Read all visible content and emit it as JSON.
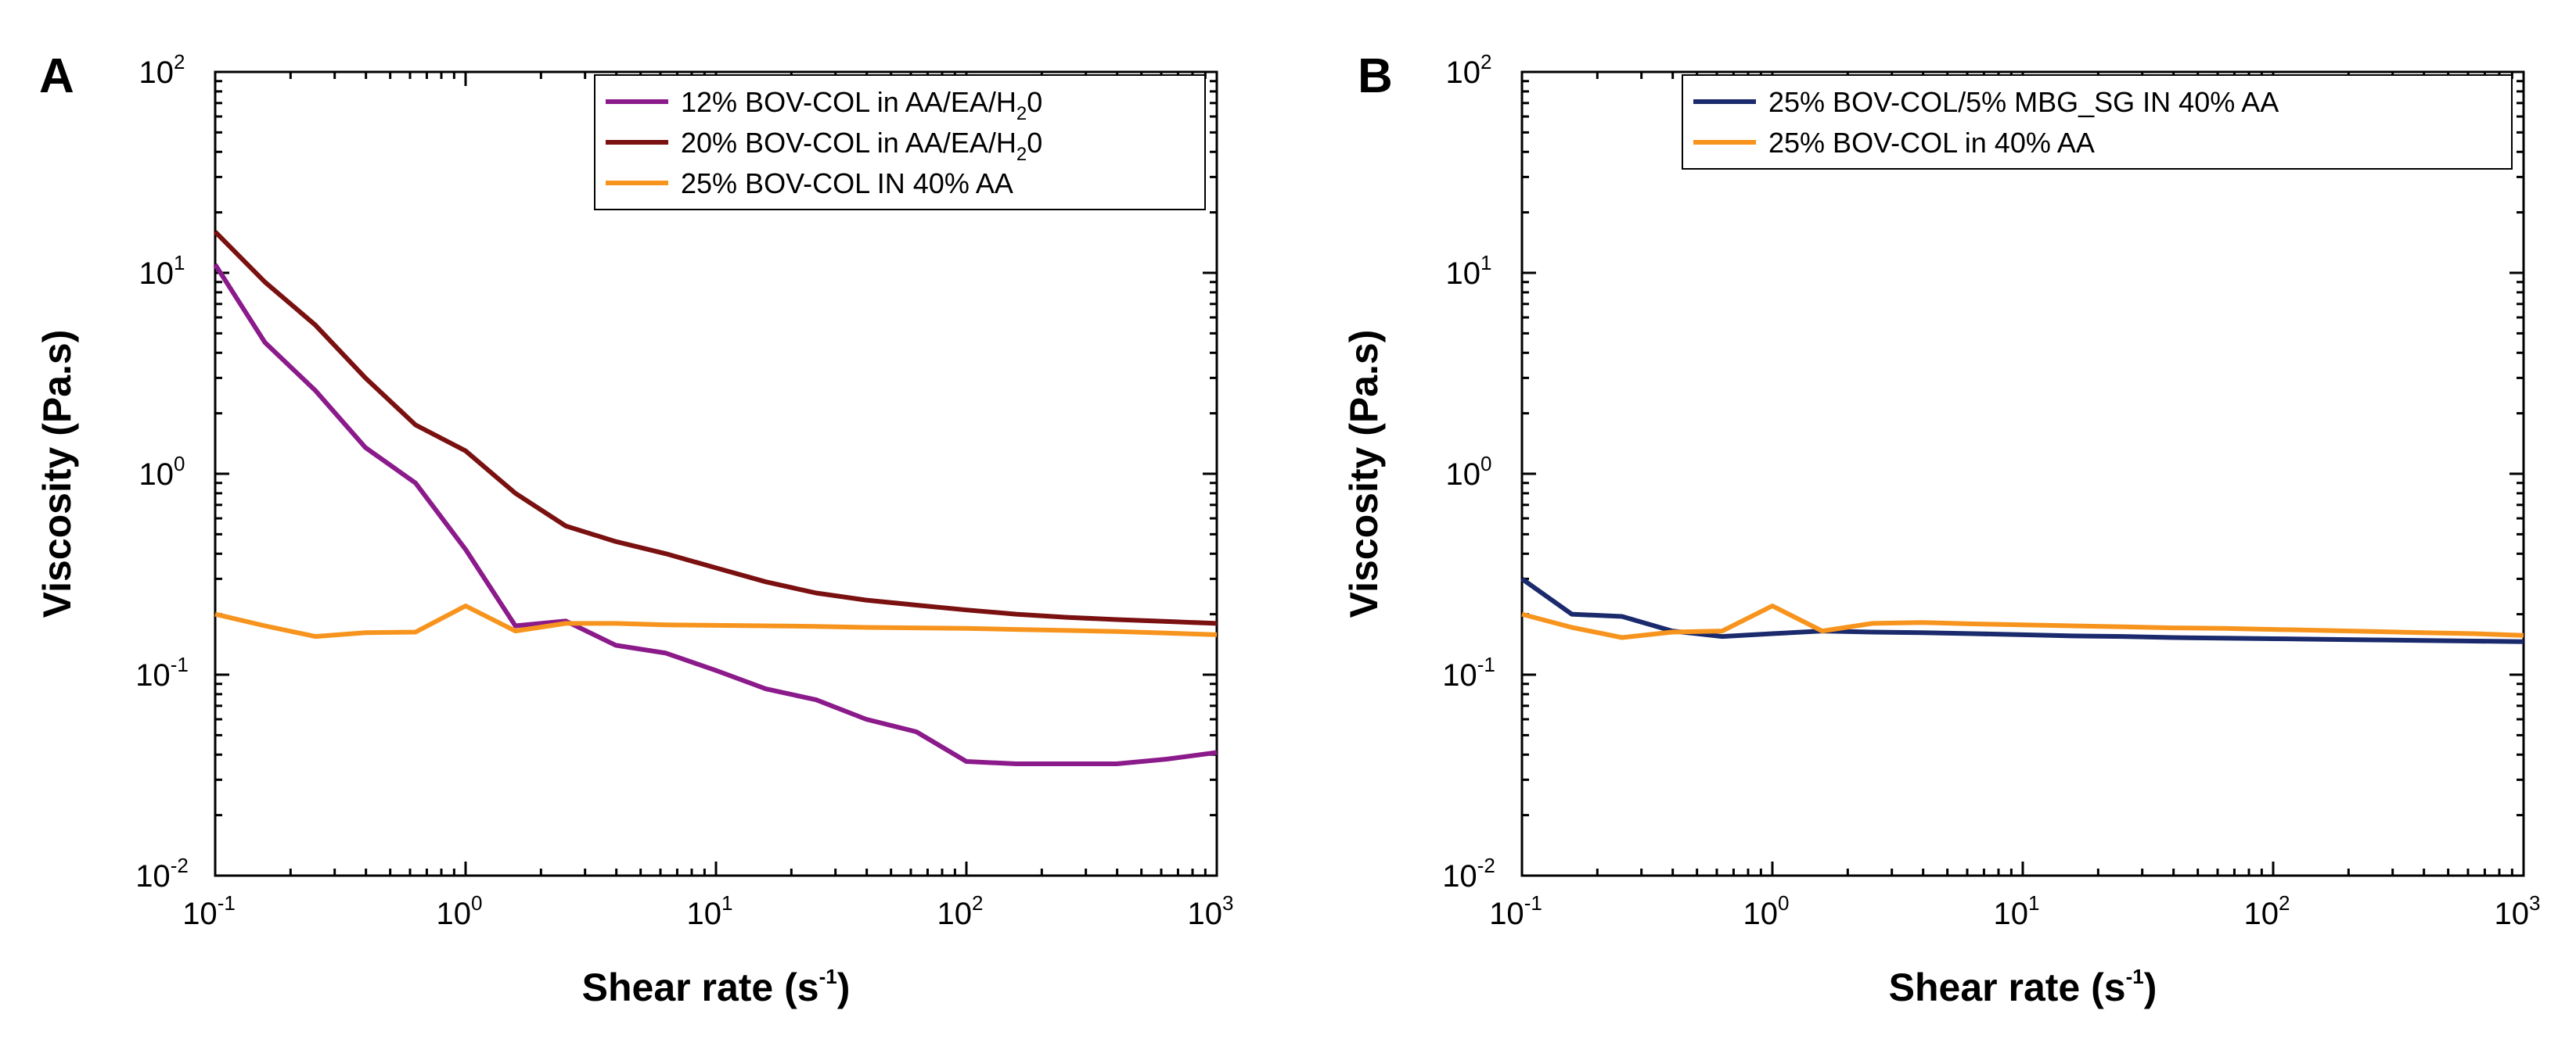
{
  "chart_data": [
    {
      "type": "line",
      "panel_label": "A",
      "xscale": "log",
      "yscale": "log",
      "xlim": [
        0.1,
        1000
      ],
      "ylim": [
        0.01,
        100
      ],
      "xlabel": "Shear rate",
      "xlabel_unit": "(s",
      "xlabel_unit_exp": "-1",
      "xlabel_unit_end": ")",
      "ylabel": "Viscosity (Pa.s)",
      "xticks": [
        {
          "base": "10",
          "exp": "-1"
        },
        {
          "base": "10",
          "exp": "0"
        },
        {
          "base": "10",
          "exp": "1"
        },
        {
          "base": "10",
          "exp": "2"
        },
        {
          "base": "10",
          "exp": "3"
        }
      ],
      "yticks": [
        {
          "base": "10",
          "exp": "-2"
        },
        {
          "base": "10",
          "exp": "-1"
        },
        {
          "base": "10",
          "exp": "0"
        },
        {
          "base": "10",
          "exp": "1"
        },
        {
          "base": "10",
          "exp": "2"
        }
      ],
      "legend_position": "top-right",
      "series": [
        {
          "name": "12% BOV-COL in AA/EA/H20",
          "legend_main": "12% BOV-COL in AA/EA/H",
          "legend_sub": "2",
          "legend_end": "0",
          "color": "#8b1a8b",
          "x": [
            0.1,
            0.158,
            0.251,
            0.398,
            0.631,
            1.0,
            1.58,
            2.51,
            3.98,
            6.31,
            10,
            15.8,
            25.1,
            39.8,
            63.1,
            100,
            158,
            251,
            398,
            631,
            1000
          ],
          "y": [
            11,
            4.5,
            2.6,
            1.35,
            0.9,
            0.42,
            0.175,
            0.185,
            0.14,
            0.128,
            0.105,
            0.085,
            0.075,
            0.06,
            0.052,
            0.037,
            0.036,
            0.036,
            0.036,
            0.038,
            0.041
          ]
        },
        {
          "name": "20% BOV-COL in AA/EA/H20",
          "legend_main": "20% BOV-COL in AA/EA/H",
          "legend_sub": "2",
          "legend_end": "0",
          "color": "#7a1010",
          "x": [
            0.1,
            0.158,
            0.251,
            0.398,
            0.631,
            1.0,
            1.58,
            2.51,
            3.98,
            6.31,
            10,
            15.8,
            25.1,
            39.8,
            63.1,
            100,
            158,
            251,
            398,
            631,
            1000
          ],
          "y": [
            16,
            9,
            5.5,
            3.0,
            1.75,
            1.3,
            0.8,
            0.55,
            0.46,
            0.4,
            0.34,
            0.29,
            0.255,
            0.235,
            0.222,
            0.21,
            0.2,
            0.193,
            0.188,
            0.184,
            0.18
          ]
        },
        {
          "name": "25% BOV-COL IN 40% AA",
          "legend_main": "25% BOV-COL IN 40% AA",
          "legend_sub": "",
          "legend_end": "",
          "color": "#f7941d",
          "x": [
            0.1,
            0.158,
            0.251,
            0.398,
            0.631,
            1.0,
            1.58,
            2.51,
            3.98,
            6.31,
            10,
            15.8,
            25.1,
            39.8,
            63.1,
            100,
            158,
            251,
            398,
            631,
            1000
          ],
          "y": [
            0.2,
            0.175,
            0.155,
            0.162,
            0.163,
            0.22,
            0.165,
            0.18,
            0.18,
            0.177,
            0.176,
            0.175,
            0.174,
            0.172,
            0.171,
            0.17,
            0.168,
            0.166,
            0.164,
            0.161,
            0.158
          ]
        }
      ]
    },
    {
      "type": "line",
      "panel_label": "B",
      "xscale": "log",
      "yscale": "log",
      "xlim": [
        0.1,
        1000
      ],
      "ylim": [
        0.01,
        100
      ],
      "xlabel": "Shear rate",
      "xlabel_unit": "(s",
      "xlabel_unit_exp": "-1",
      "xlabel_unit_end": ")",
      "ylabel": "Viscosity (Pa.s)",
      "xticks": [
        {
          "base": "10",
          "exp": "-1"
        },
        {
          "base": "10",
          "exp": "0"
        },
        {
          "base": "10",
          "exp": "1"
        },
        {
          "base": "10",
          "exp": "2"
        },
        {
          "base": "10",
          "exp": "3"
        }
      ],
      "yticks": [
        {
          "base": "10",
          "exp": "-2"
        },
        {
          "base": "10",
          "exp": "-1"
        },
        {
          "base": "10",
          "exp": "0"
        },
        {
          "base": "10",
          "exp": "1"
        },
        {
          "base": "10",
          "exp": "2"
        }
      ],
      "legend_position": "top-right",
      "series": [
        {
          "name": "25% BOV-COL/5% MBG_SG IN 40% AA",
          "legend_main": "25% BOV-COL/5% MBG_SG IN 40% AA",
          "legend_sub": "",
          "legend_end": "",
          "color": "#1a2a6c",
          "x": [
            0.1,
            0.158,
            0.251,
            0.398,
            0.631,
            1.0,
            1.58,
            2.51,
            3.98,
            6.31,
            10,
            15.8,
            25.1,
            39.8,
            63.1,
            100,
            158,
            251,
            398,
            631,
            1000
          ],
          "y": [
            0.3,
            0.2,
            0.195,
            0.165,
            0.155,
            0.16,
            0.165,
            0.163,
            0.162,
            0.16,
            0.158,
            0.156,
            0.155,
            0.153,
            0.152,
            0.151,
            0.15,
            0.149,
            0.148,
            0.147,
            0.146
          ]
        },
        {
          "name": "25% BOV-COL in 40% AA",
          "legend_main": "25% BOV-COL in 40% AA",
          "legend_sub": "",
          "legend_end": "",
          "color": "#f7941d",
          "x": [
            0.1,
            0.158,
            0.251,
            0.398,
            0.631,
            1.0,
            1.58,
            2.51,
            3.98,
            6.31,
            10,
            15.8,
            25.1,
            39.8,
            63.1,
            100,
            158,
            251,
            398,
            631,
            1000
          ],
          "y": [
            0.2,
            0.172,
            0.153,
            0.163,
            0.165,
            0.22,
            0.165,
            0.18,
            0.182,
            0.179,
            0.177,
            0.175,
            0.173,
            0.171,
            0.17,
            0.168,
            0.166,
            0.164,
            0.162,
            0.16,
            0.157
          ]
        }
      ]
    }
  ]
}
